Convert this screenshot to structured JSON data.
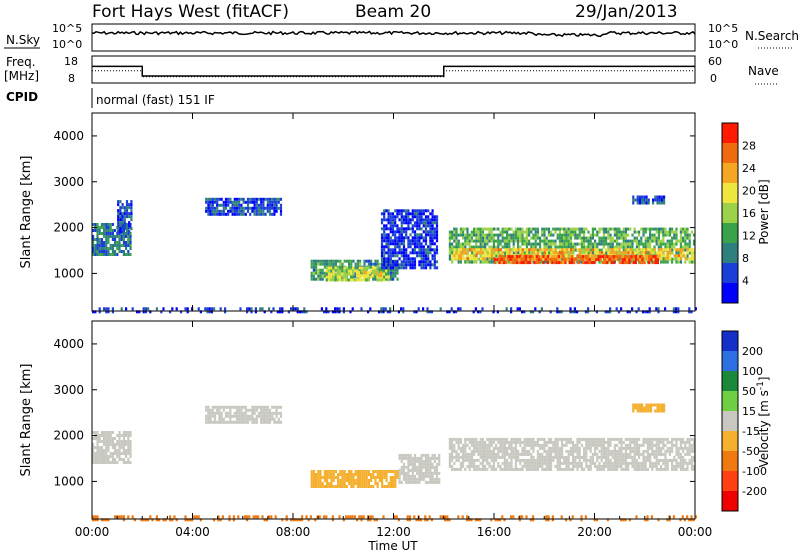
{
  "header": {
    "station": "Fort Hays West (fitACF)",
    "beam": "Beam 20",
    "date": "29/Jan/2013"
  },
  "noise_panel": {
    "left_label": "N.Sky",
    "right_label": "N.Search",
    "left_ticks": [
      "10^5",
      "10^0"
    ],
    "right_ticks": [
      "10^5",
      "10^0"
    ]
  },
  "freq_panel": {
    "label_line1": "Freq.",
    "label_line2": "[MHz]",
    "right_label": "Nave",
    "left_ticks": [
      "18",
      "8"
    ],
    "right_ticks": [
      "60",
      "0"
    ],
    "freq_series": {
      "x_hours": [
        0,
        2,
        2,
        14,
        14,
        24
      ],
      "mhz": [
        14.5,
        14.5,
        10.5,
        10.5,
        14.5,
        14.5
      ]
    },
    "nave_series": {
      "x_hours": [
        0,
        2,
        2,
        14,
        14,
        24
      ],
      "value": [
        28,
        28,
        13,
        13,
        28,
        28
      ]
    }
  },
  "cpid": {
    "label": "CPID",
    "program": "normal (fast) 151 IF"
  },
  "chart_data": [
    {
      "type": "heatmap",
      "name": "power",
      "xlabel": "Time UT",
      "ylabel": "Slant Range [km]",
      "xlim": [
        0,
        24
      ],
      "ylim": [
        180,
        4500
      ],
      "yticks": [
        1000,
        2000,
        3000,
        4000
      ],
      "colorbar": {
        "label": "Power [dB]",
        "ticks": [
          "28",
          "24",
          "20",
          "16",
          "12",
          "8",
          "4"
        ],
        "range": [
          0,
          30
        ],
        "colors": [
          "#0000ff",
          "#1a3fd8",
          "#2f7f7f",
          "#3aa24a",
          "#9bd24a",
          "#f0e640",
          "#f5a623",
          "#f06a10",
          "#ff1a00"
        ]
      },
      "regions": [
        {
          "t": [
            0.0,
            1.5
          ],
          "r": [
            1400,
            2100
          ],
          "v": 8
        },
        {
          "t": [
            1.0,
            1.6
          ],
          "r": [
            1900,
            2600
          ],
          "v": 5
        },
        {
          "t": [
            4.5,
            7.5
          ],
          "r": [
            2300,
            2650
          ],
          "v": 5
        },
        {
          "t": [
            8.7,
            12.2
          ],
          "r": [
            850,
            1300
          ],
          "v": 10
        },
        {
          "t": [
            9.3,
            11.8
          ],
          "r": [
            870,
            1150
          ],
          "v": 16
        },
        {
          "t": [
            10.5,
            11.5
          ],
          "r": [
            920,
            1050
          ],
          "v": 20
        },
        {
          "t": [
            11.5,
            13.7
          ],
          "r": [
            1100,
            2400
          ],
          "v": 4
        },
        {
          "t": [
            14.2,
            24.0
          ],
          "r": [
            1250,
            2000
          ],
          "v": 12
        },
        {
          "t": [
            14.3,
            24.0
          ],
          "r": [
            1300,
            1550
          ],
          "v": 20
        },
        {
          "t": [
            16.0,
            22.5
          ],
          "r": [
            1250,
            1400
          ],
          "v": 26
        },
        {
          "t": [
            21.5,
            22.8
          ],
          "r": [
            2550,
            2700
          ],
          "v": 6
        },
        {
          "t": [
            0.0,
            24.0
          ],
          "r": [
            180,
            260
          ],
          "v": 4
        }
      ]
    },
    {
      "type": "heatmap",
      "name": "velocity",
      "xlabel": "Time UT",
      "ylabel": "Slant Range [km]",
      "xlim": [
        0,
        24
      ],
      "ylim": [
        180,
        4500
      ],
      "yticks": [
        1000,
        2000,
        3000,
        4000
      ],
      "xticks": [
        "00:00",
        "04:00",
        "08:00",
        "12:00",
        "16:00",
        "20:00",
        "00:00"
      ],
      "colorbar": {
        "label": "Velocity [m s",
        "label_sup": "-1",
        "label_end": "]",
        "ticks": [
          "200",
          "100",
          "50",
          "15",
          "-15",
          "-50",
          "-100",
          "-200"
        ],
        "colors": [
          "#1430c8",
          "#2d6fe0",
          "#1a8a3a",
          "#6dd044",
          "#c8c8c0",
          "#f5b030",
          "#f07a10",
          "#ff4010",
          "#ee0000"
        ]
      },
      "regions": [
        {
          "t": [
            0.0,
            1.5
          ],
          "r": [
            1400,
            2100
          ],
          "v": 0
        },
        {
          "t": [
            4.5,
            7.5
          ],
          "r": [
            2300,
            2650
          ],
          "v": 0
        },
        {
          "t": [
            8.7,
            12.2
          ],
          "r": [
            870,
            1250
          ],
          "v": -40
        },
        {
          "t": [
            12.2,
            13.8
          ],
          "r": [
            1000,
            1600
          ],
          "v": 0
        },
        {
          "t": [
            14.2,
            24.0
          ],
          "r": [
            1250,
            1950
          ],
          "v": 0
        },
        {
          "t": [
            21.5,
            22.8
          ],
          "r": [
            2550,
            2700
          ],
          "v": -40
        },
        {
          "t": [
            0.0,
            24.0
          ],
          "r": [
            180,
            260
          ],
          "v": -60
        }
      ]
    }
  ]
}
